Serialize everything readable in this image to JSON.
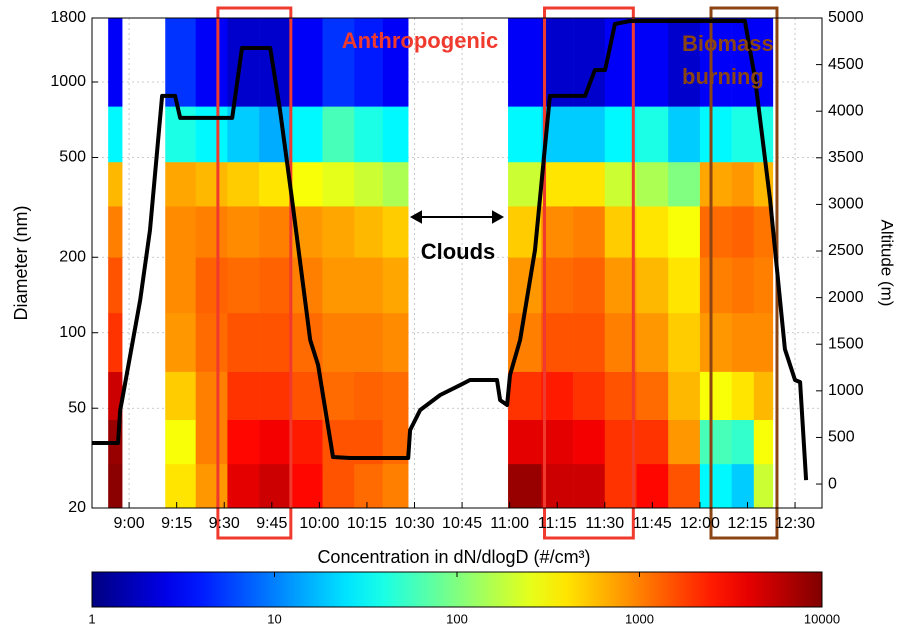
{
  "chart_data": {
    "type": "heatmap",
    "ylabel": "Diameter (nm)",
    "y2label": "Altitude (m)",
    "colorbar_label": "Concentration in dN/dlogD (#/cm³)",
    "xlim": [
      528.3,
      758.5
    ],
    "xticks": [
      {
        "value": 540,
        "label": "9:00"
      },
      {
        "value": 555,
        "label": "9:15"
      },
      {
        "value": 570,
        "label": "9:30"
      },
      {
        "value": 585,
        "label": "9:45"
      },
      {
        "value": 600,
        "label": "10:00"
      },
      {
        "value": 615,
        "label": "10:15"
      },
      {
        "value": 630,
        "label": "10:30"
      },
      {
        "value": 645,
        "label": "10:45"
      },
      {
        "value": 660,
        "label": "11:00"
      },
      {
        "value": 675,
        "label": "11:15"
      },
      {
        "value": 690,
        "label": "11:30"
      },
      {
        "value": 705,
        "label": "11:45"
      },
      {
        "value": 720,
        "label": "12:00"
      },
      {
        "value": 735,
        "label": "12:15"
      },
      {
        "value": 750,
        "label": "12:30"
      }
    ],
    "ylim": [
      20,
      1800
    ],
    "ylog": true,
    "yticks": [
      20,
      50,
      100,
      200,
      500,
      1000,
      1800
    ],
    "y2lim": [
      -257,
      5000
    ],
    "y2ticks": [
      0,
      500,
      1000,
      1500,
      2000,
      2500,
      3000,
      3500,
      4000,
      4500,
      5000
    ],
    "grid": true,
    "clim": [
      1,
      10000
    ],
    "cticks": [
      1,
      10,
      100,
      1000,
      10000
    ],
    "colormap": "jet",
    "x_bins": [
      528.3,
      533.4,
      537.8,
      551.4,
      561,
      571,
      581,
      591,
      601,
      611,
      620,
      628,
      659.5,
      670,
      680,
      690,
      700,
      710,
      720,
      730,
      737,
      743,
      758.5
    ],
    "y_bins": [
      20,
      30,
      45,
      70,
      120,
      200,
      320,
      480,
      800,
      1800
    ],
    "z": [
      null,
      [
        9000,
        8000,
        5000,
        2000,
        1500,
        1000,
        600,
        30,
        3
      ],
      null,
      [
        400,
        300,
        500,
        800,
        900,
        900,
        700,
        40,
        5
      ],
      [
        800,
        1000,
        1000,
        1200,
        1300,
        1000,
        600,
        30,
        3
      ],
      [
        4000,
        3000,
        2000,
        1500,
        1200,
        900,
        500,
        20,
        2
      ],
      [
        5000,
        3500,
        2000,
        1500,
        1300,
        1000,
        400,
        15,
        2
      ],
      [
        3000,
        2500,
        1500,
        1200,
        1000,
        800,
        300,
        30,
        3
      ],
      [
        1500,
        1500,
        1200,
        1000,
        800,
        700,
        250,
        60,
        5
      ],
      [
        1200,
        1500,
        1300,
        1000,
        800,
        600,
        200,
        40,
        4
      ],
      [
        1000,
        1200,
        1200,
        900,
        700,
        500,
        150,
        30,
        3
      ],
      null,
      [
        8000,
        4000,
        2000,
        1000,
        800,
        500,
        200,
        30,
        3
      ],
      [
        5000,
        4000,
        2500,
        1500,
        1200,
        900,
        400,
        20,
        2
      ],
      [
        5000,
        3500,
        2000,
        1500,
        1300,
        1000,
        400,
        20,
        2
      ],
      [
        2000,
        2000,
        1500,
        1000,
        800,
        500,
        200,
        30,
        3
      ],
      [
        3000,
        2000,
        1200,
        800,
        600,
        400,
        150,
        40,
        3
      ],
      [
        1500,
        800,
        600,
        500,
        400,
        300,
        100,
        20,
        2
      ],
      [
        30,
        60,
        300,
        800,
        1000,
        1200,
        700,
        30,
        3
      ],
      [
        20,
        50,
        400,
        900,
        1100,
        1300,
        800,
        40,
        3
      ],
      [
        200,
        300,
        600,
        900,
        1000,
        1100,
        600,
        40,
        3
      ],
      null
    ],
    "line": {
      "color": "#000000",
      "axis": "y2",
      "x": [
        528.3,
        536.5,
        537.2,
        537.8,
        543.5,
        546.6,
        550.4,
        554.5,
        556.1,
        567.1,
        572.5,
        575.6,
        584.5,
        587.6,
        591.4,
        597.1,
        599.6,
        604.3,
        609.7,
        628.0,
        628.6,
        631.8,
        638.1,
        644.4,
        647.5,
        656.0,
        657.0,
        659.2,
        660.1,
        663.3,
        668.0,
        672.7,
        683.8,
        686.9,
        690.1,
        693.2,
        697.9,
        734.2,
        737.4,
        742.1,
        746.8,
        750.0,
        751.6,
        753.5
      ],
      "values": [
        440,
        440,
        794,
        901,
        1975,
        2726,
        4164,
        4164,
        3928,
        3928,
        3928,
        4678,
        4678,
        4013,
        3047,
        1545,
        1277,
        290,
        279,
        279,
        579,
        794,
        955,
        1062,
        1116,
        1116,
        901,
        848,
        1169,
        1545,
        2511,
        4164,
        4164,
        4442,
        4442,
        4936,
        4968,
        4968,
        4346,
        3057,
        1448,
        1116,
        1094,
        42
      ]
    },
    "highlight_boxes": [
      {
        "x": [
          568,
          591
        ],
        "color": "#f03a2e"
      },
      {
        "x": [
          671,
          699
        ],
        "color": "#f03a2e"
      },
      {
        "x": [
          723.5,
          744.3
        ],
        "color": "#8b4513"
      }
    ],
    "annotations": [
      {
        "lines": [
          "Anthropogenic"
        ],
        "color": "#f03a2e"
      },
      {
        "lines": [
          "Biomass",
          "burning"
        ],
        "color": "#8b4513"
      },
      {
        "lines": [
          "Clouds"
        ],
        "color": "#000000"
      }
    ]
  }
}
